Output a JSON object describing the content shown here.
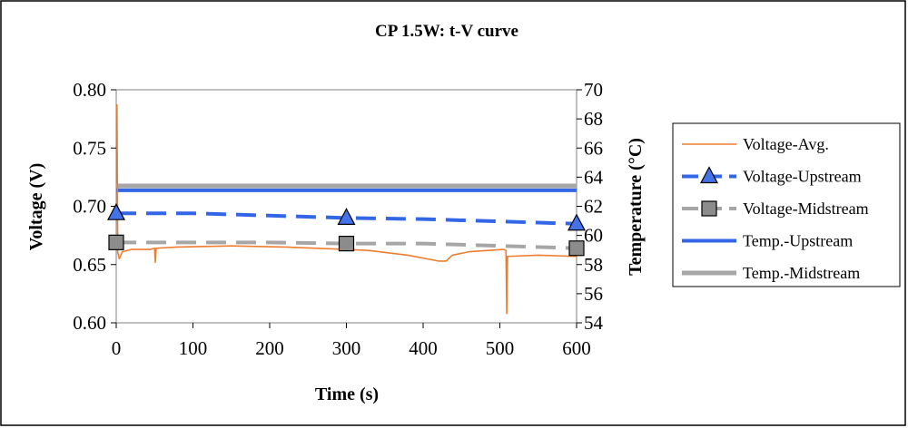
{
  "colors": {
    "voltage_avg": "#ED7D31",
    "voltage_upstream": "#3366E6",
    "voltage_midstream": "#A6A6A6",
    "temp_upstream": "#3366E6",
    "temp_midstream": "#A6A6A6",
    "marker_triangle": "#4472E8",
    "marker_square": "#8C8C8C"
  },
  "chart_data": {
    "type": "line",
    "title": "CP 1.5W: t-V curve",
    "xlabel": "Time (s)",
    "ylabel": "Voltage (V)",
    "y2label": "Temperature (°C)",
    "xlim": [
      0,
      600
    ],
    "ylim": [
      0.6,
      0.8
    ],
    "y2lim": [
      54,
      70
    ],
    "x_ticks": [
      "0",
      "100",
      "200",
      "300",
      "400",
      "500",
      "600"
    ],
    "y_ticks": [
      "0.60",
      "0.65",
      "0.70",
      "0.75",
      "0.80"
    ],
    "y2_ticks": [
      "54",
      "56",
      "58",
      "60",
      "62",
      "64",
      "66",
      "68",
      "70"
    ],
    "legend_position": "right",
    "series": [
      {
        "name": "Voltage-Avg.",
        "axis": "left",
        "style": "thin-solid",
        "points": [
          [
            0,
            0.787
          ],
          [
            1,
            0.787
          ],
          [
            2,
            0.66
          ],
          [
            4,
            0.655
          ],
          [
            8,
            0.661
          ],
          [
            20,
            0.663
          ],
          [
            45,
            0.663
          ],
          [
            50,
            0.664
          ],
          [
            51,
            0.652
          ],
          [
            52,
            0.664
          ],
          [
            80,
            0.665
          ],
          [
            150,
            0.666
          ],
          [
            220,
            0.665
          ],
          [
            300,
            0.663
          ],
          [
            330,
            0.662
          ],
          [
            380,
            0.658
          ],
          [
            420,
            0.653
          ],
          [
            430,
            0.653
          ],
          [
            438,
            0.658
          ],
          [
            460,
            0.661
          ],
          [
            505,
            0.663
          ],
          [
            508,
            0.662
          ],
          [
            509,
            0.608
          ],
          [
            510,
            0.657
          ],
          [
            550,
            0.658
          ],
          [
            600,
            0.657
          ]
        ]
      },
      {
        "name": "Voltage-Upstream",
        "axis": "left",
        "style": "dashed",
        "marker": "triangle",
        "points": [
          [
            0,
            0.694
          ],
          [
            100,
            0.694
          ],
          [
            200,
            0.692
          ],
          [
            300,
            0.69
          ],
          [
            400,
            0.689
          ],
          [
            500,
            0.687
          ],
          [
            600,
            0.685
          ]
        ],
        "marker_points": [
          [
            0,
            0.694
          ],
          [
            300,
            0.69
          ],
          [
            600,
            0.685
          ]
        ]
      },
      {
        "name": "Voltage-Midstream",
        "axis": "left",
        "style": "dashed",
        "marker": "square",
        "points": [
          [
            0,
            0.669
          ],
          [
            100,
            0.669
          ],
          [
            200,
            0.669
          ],
          [
            300,
            0.668
          ],
          [
            400,
            0.668
          ],
          [
            500,
            0.666
          ],
          [
            600,
            0.664
          ]
        ],
        "marker_points": [
          [
            0,
            0.669
          ],
          [
            300,
            0.668
          ],
          [
            600,
            0.664
          ]
        ]
      },
      {
        "name": "Temp.-Upstream",
        "axis": "right",
        "style": "thick-solid",
        "points": [
          [
            0,
            63.1
          ],
          [
            600,
            63.1
          ]
        ]
      },
      {
        "name": "Temp.-Midstream",
        "axis": "right",
        "style": "thick-solid",
        "points": [
          [
            0,
            63.4
          ],
          [
            600,
            63.4
          ]
        ]
      }
    ]
  }
}
